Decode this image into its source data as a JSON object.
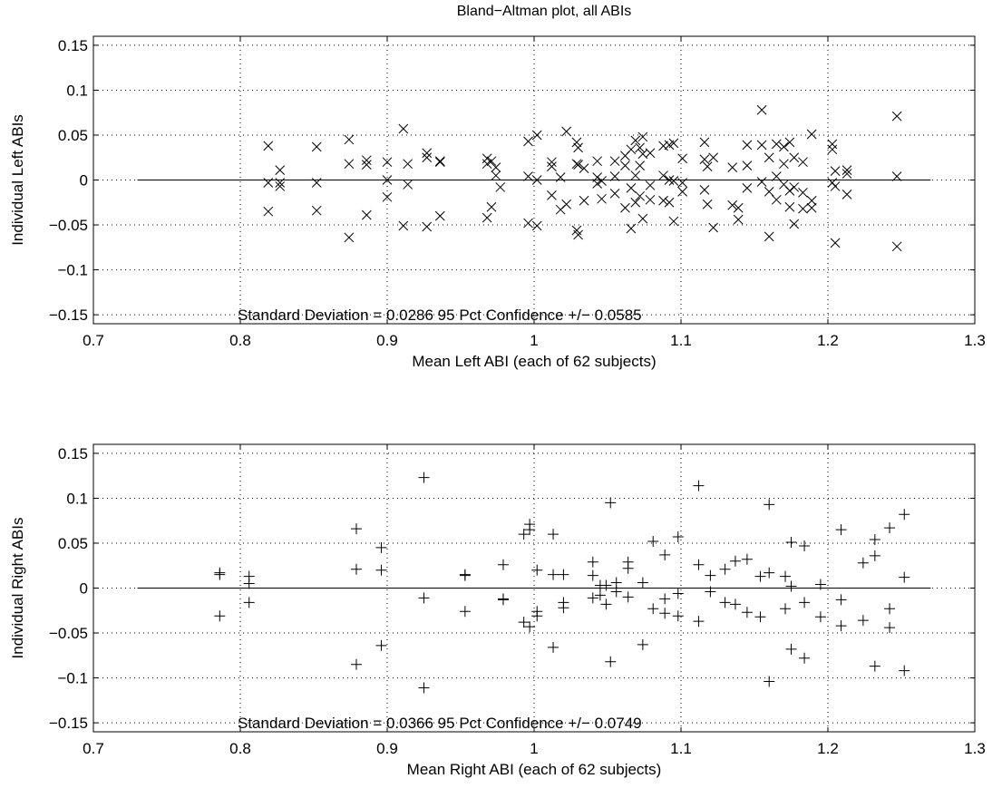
{
  "figure_title": "Bland−Altman plot, all ABIs",
  "chart_data": [
    {
      "type": "scatter",
      "marker": "x",
      "title": "Bland−Altman plot, all ABIs",
      "xlabel": "Mean Left ABI (each of  62 subjects)",
      "ylabel": "Individual Left ABIs",
      "xlim": [
        0.7,
        1.3
      ],
      "ylim": [
        -0.16,
        0.16
      ],
      "xticks": [
        0.7,
        0.8,
        0.9,
        1.0,
        1.1,
        1.2,
        1.3
      ],
      "xtick_labels": [
        "0.7",
        "0.8",
        "0.9",
        "1",
        "1.1",
        "1.2",
        "1.3"
      ],
      "yticks": [
        0.15,
        0.1,
        0.05,
        0,
        -0.05,
        -0.1,
        -0.15
      ],
      "ytick_labels": [
        "0.15",
        "0.1",
        "0.05",
        "0",
        "−0.05",
        "−0.1",
        "−0.15"
      ],
      "grid": true,
      "zero_line": {
        "x": [
          0.73,
          1.27
        ],
        "y": 0
      },
      "annotation": "Standard Deviation = 0.0286  95 Pct Confidence +/− 0.0585",
      "points": [
        [
          0.819,
          0.038
        ],
        [
          0.819,
          -0.003
        ],
        [
          0.819,
          -0.035
        ],
        [
          0.827,
          0.011
        ],
        [
          0.827,
          -0.003
        ],
        [
          0.827,
          -0.007
        ],
        [
          0.852,
          0.037
        ],
        [
          0.852,
          -0.003
        ],
        [
          0.852,
          -0.034
        ],
        [
          0.874,
          0.045
        ],
        [
          0.874,
          0.018
        ],
        [
          0.874,
          -0.064
        ],
        [
          0.886,
          0.022
        ],
        [
          0.886,
          0.017
        ],
        [
          0.886,
          -0.039
        ],
        [
          0.9,
          0.02
        ],
        [
          0.9,
          0.0
        ],
        [
          0.9,
          -0.019
        ],
        [
          0.911,
          0.057
        ],
        [
          0.911,
          -0.051
        ],
        [
          0.914,
          0.018
        ],
        [
          0.914,
          -0.005
        ],
        [
          0.927,
          0.03
        ],
        [
          0.927,
          0.025
        ],
        [
          0.927,
          -0.052
        ],
        [
          0.936,
          0.021
        ],
        [
          0.936,
          0.02
        ],
        [
          0.936,
          -0.04
        ],
        [
          0.968,
          0.024
        ],
        [
          0.968,
          0.018
        ],
        [
          0.968,
          -0.042
        ],
        [
          0.971,
          0.021
        ],
        [
          0.971,
          -0.03
        ],
        [
          0.974,
          0.014
        ],
        [
          0.974,
          0.005
        ],
        [
          0.977,
          -0.008
        ],
        [
          0.996,
          0.043
        ],
        [
          0.996,
          0.004
        ],
        [
          0.996,
          -0.048
        ],
        [
          1.002,
          0.05
        ],
        [
          1.002,
          0.0
        ],
        [
          1.002,
          -0.051
        ],
        [
          1.012,
          0.015
        ],
        [
          1.012,
          0.02
        ],
        [
          1.012,
          -0.017
        ],
        [
          1.018,
          0.003
        ],
        [
          1.018,
          -0.033
        ],
        [
          1.022,
          0.054
        ],
        [
          1.022,
          -0.027
        ],
        [
          1.029,
          0.042
        ],
        [
          1.029,
          0.018
        ],
        [
          1.029,
          -0.056
        ],
        [
          1.03,
          0.036
        ],
        [
          1.03,
          0.017
        ],
        [
          1.03,
          -0.061
        ],
        [
          1.034,
          0.013
        ],
        [
          1.034,
          -0.023
        ],
        [
          1.043,
          0.021
        ],
        [
          1.043,
          0.003
        ],
        [
          1.043,
          -0.004
        ],
        [
          1.046,
          -0.001
        ],
        [
          1.046,
          -0.021
        ],
        [
          1.055,
          0.021
        ],
        [
          1.055,
          0.004
        ],
        [
          1.055,
          -0.015
        ],
        [
          1.062,
          0.027
        ],
        [
          1.062,
          0.016
        ],
        [
          1.062,
          -0.031
        ],
        [
          1.066,
          0.034
        ],
        [
          1.066,
          -0.009
        ],
        [
          1.066,
          -0.054
        ],
        [
          1.069,
          0.044
        ],
        [
          1.069,
          0.005
        ],
        [
          1.069,
          -0.025
        ],
        [
          1.072,
          0.036
        ],
        [
          1.072,
          0.016
        ],
        [
          1.072,
          -0.018
        ],
        [
          1.074,
          0.048
        ],
        [
          1.074,
          0.029
        ],
        [
          1.074,
          -0.043
        ],
        [
          1.079,
          0.03
        ],
        [
          1.079,
          -0.006
        ],
        [
          1.079,
          -0.022
        ],
        [
          1.088,
          0.038
        ],
        [
          1.088,
          0.005
        ],
        [
          1.088,
          -0.023
        ],
        [
          1.092,
          0.039
        ],
        [
          1.092,
          0.0
        ],
        [
          1.092,
          -0.025
        ],
        [
          1.095,
          0.041
        ],
        [
          1.095,
          -0.001
        ],
        [
          1.095,
          -0.046
        ],
        [
          1.101,
          0.024
        ],
        [
          1.101,
          -0.003
        ],
        [
          1.101,
          -0.013
        ],
        [
          1.116,
          0.042
        ],
        [
          1.116,
          0.023
        ],
        [
          1.116,
          -0.011
        ],
        [
          1.118,
          0.015
        ],
        [
          1.118,
          -0.027
        ],
        [
          1.122,
          0.025
        ],
        [
          1.122,
          -0.053
        ],
        [
          1.135,
          0.014
        ],
        [
          1.135,
          -0.028
        ],
        [
          1.139,
          -0.031
        ],
        [
          1.139,
          -0.044
        ],
        [
          1.145,
          0.039
        ],
        [
          1.145,
          0.016
        ],
        [
          1.145,
          -0.009
        ],
        [
          1.155,
          0.078
        ],
        [
          1.155,
          0.039
        ],
        [
          1.155,
          -0.002
        ],
        [
          1.16,
          0.025
        ],
        [
          1.16,
          -0.013
        ],
        [
          1.16,
          -0.063
        ],
        [
          1.165,
          0.04
        ],
        [
          1.165,
          0.004
        ],
        [
          1.165,
          -0.022
        ],
        [
          1.17,
          0.037
        ],
        [
          1.17,
          0.018
        ],
        [
          1.17,
          -0.005
        ],
        [
          1.174,
          0.042
        ],
        [
          1.174,
          -0.012
        ],
        [
          1.174,
          -0.03
        ],
        [
          1.177,
          0.025
        ],
        [
          1.177,
          -0.008
        ],
        [
          1.177,
          -0.049
        ],
        [
          1.183,
          0.02
        ],
        [
          1.183,
          -0.014
        ],
        [
          1.183,
          -0.032
        ],
        [
          1.189,
          0.051
        ],
        [
          1.189,
          -0.023
        ],
        [
          1.189,
          -0.031
        ],
        [
          1.203,
          0.04
        ],
        [
          1.203,
          0.034
        ],
        [
          1.203,
          -0.003
        ],
        [
          1.205,
          0.01
        ],
        [
          1.205,
          -0.007
        ],
        [
          1.205,
          -0.07
        ],
        [
          1.213,
          0.011
        ],
        [
          1.213,
          0.007
        ],
        [
          1.213,
          -0.016
        ],
        [
          1.247,
          0.071
        ],
        [
          1.247,
          0.004
        ],
        [
          1.247,
          -0.074
        ]
      ]
    },
    {
      "type": "scatter",
      "marker": "+",
      "title": "",
      "xlabel": "Mean Right ABI (each of  62 subjects)",
      "ylabel": "Individual Right ABIs",
      "xlim": [
        0.7,
        1.3
      ],
      "ylim": [
        -0.16,
        0.16
      ],
      "xticks": [
        0.7,
        0.8,
        0.9,
        1.0,
        1.1,
        1.2,
        1.3
      ],
      "xtick_labels": [
        "0.7",
        "0.8",
        "0.9",
        "1",
        "1.1",
        "1.2",
        "1.3"
      ],
      "yticks": [
        0.15,
        0.1,
        0.05,
        0,
        -0.05,
        -0.1,
        -0.15
      ],
      "ytick_labels": [
        "0.15",
        "0.1",
        "0.05",
        "0",
        "−0.05",
        "−0.1",
        "−0.15"
      ],
      "grid": true,
      "zero_line": {
        "x": [
          0.73,
          1.27
        ],
        "y": 0
      },
      "annotation": "Standard Deviation = 0.0366  95 Pct Confidence +/− 0.0749",
      "points": [
        [
          0.786,
          0.017
        ],
        [
          0.786,
          0.015
        ],
        [
          0.786,
          -0.031
        ],
        [
          0.806,
          0.013
        ],
        [
          0.806,
          0.005
        ],
        [
          0.806,
          -0.016
        ],
        [
          0.879,
          0.066
        ],
        [
          0.879,
          0.021
        ],
        [
          0.879,
          -0.085
        ],
        [
          0.896,
          0.045
        ],
        [
          0.896,
          0.02
        ],
        [
          0.896,
          -0.064
        ],
        [
          0.925,
          0.123
        ],
        [
          0.925,
          -0.011
        ],
        [
          0.925,
          -0.111
        ],
        [
          0.953,
          0.015
        ],
        [
          0.953,
          0.014
        ],
        [
          0.953,
          -0.026
        ],
        [
          0.979,
          0.026
        ],
        [
          0.979,
          -0.012
        ],
        [
          0.979,
          -0.013
        ],
        [
          0.993,
          0.06
        ],
        [
          0.993,
          -0.038
        ],
        [
          0.997,
          0.071
        ],
        [
          0.997,
          0.065
        ],
        [
          0.997,
          -0.043
        ],
        [
          1.002,
          0.02
        ],
        [
          1.002,
          -0.026
        ],
        [
          1.002,
          -0.031
        ],
        [
          1.013,
          0.06
        ],
        [
          1.013,
          0.015
        ],
        [
          1.013,
          -0.066
        ],
        [
          1.02,
          0.015
        ],
        [
          1.02,
          -0.016
        ],
        [
          1.02,
          -0.022
        ],
        [
          1.04,
          0.029
        ],
        [
          1.04,
          0.014
        ],
        [
          1.04,
          -0.011
        ],
        [
          1.045,
          0.003
        ],
        [
          1.045,
          -0.008
        ],
        [
          1.049,
          0.003
        ],
        [
          1.049,
          -0.018
        ],
        [
          1.052,
          0.095
        ],
        [
          1.052,
          -0.082
        ],
        [
          1.056,
          0.006
        ],
        [
          1.056,
          -0.004
        ],
        [
          1.064,
          0.029
        ],
        [
          1.064,
          0.022
        ],
        [
          1.064,
          -0.01
        ],
        [
          1.074,
          0.006
        ],
        [
          1.074,
          -0.063
        ],
        [
          1.081,
          0.052
        ],
        [
          1.081,
          -0.023
        ],
        [
          1.089,
          0.037
        ],
        [
          1.089,
          -0.012
        ],
        [
          1.089,
          -0.028
        ],
        [
          1.098,
          0.057
        ],
        [
          1.098,
          -0.006
        ],
        [
          1.098,
          -0.031
        ],
        [
          1.112,
          0.114
        ],
        [
          1.112,
          0.026
        ],
        [
          1.112,
          -0.037
        ],
        [
          1.12,
          0.014
        ],
        [
          1.12,
          -0.004
        ],
        [
          1.13,
          0.021
        ],
        [
          1.13,
          -0.016
        ],
        [
          1.137,
          0.03
        ],
        [
          1.137,
          -0.018
        ],
        [
          1.145,
          0.032
        ],
        [
          1.145,
          -0.027
        ],
        [
          1.154,
          0.013
        ],
        [
          1.154,
          -0.032
        ],
        [
          1.16,
          0.093
        ],
        [
          1.16,
          0.017
        ],
        [
          1.16,
          -0.104
        ],
        [
          1.171,
          0.013
        ],
        [
          1.171,
          -0.023
        ],
        [
          1.175,
          0.051
        ],
        [
          1.175,
          0.002
        ],
        [
          1.175,
          -0.068
        ],
        [
          1.184,
          0.047
        ],
        [
          1.184,
          -0.016
        ],
        [
          1.184,
          -0.078
        ],
        [
          1.195,
          0.004
        ],
        [
          1.195,
          -0.032
        ],
        [
          1.209,
          0.065
        ],
        [
          1.209,
          -0.013
        ],
        [
          1.209,
          -0.042
        ],
        [
          1.224,
          0.028
        ],
        [
          1.224,
          -0.036
        ],
        [
          1.232,
          0.054
        ],
        [
          1.232,
          0.036
        ],
        [
          1.232,
          -0.087
        ],
        [
          1.242,
          0.067
        ],
        [
          1.242,
          -0.023
        ],
        [
          1.242,
          -0.044
        ],
        [
          1.252,
          0.082
        ],
        [
          1.252,
          0.012
        ],
        [
          1.252,
          -0.092
        ]
      ]
    }
  ]
}
